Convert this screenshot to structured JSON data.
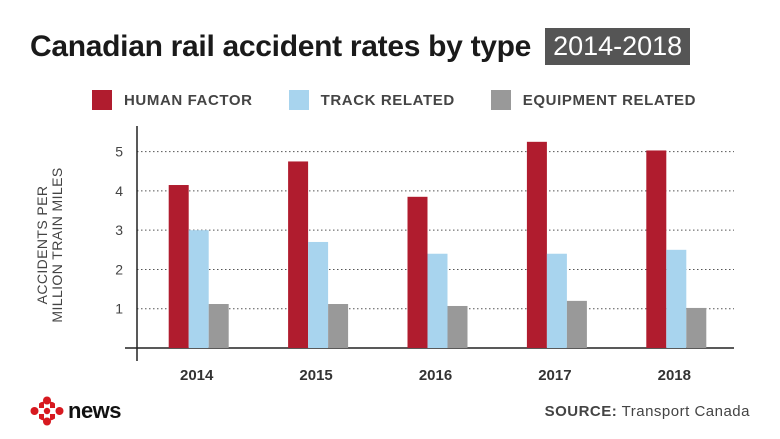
{
  "header": {
    "title": "Canadian rail accident rates by type",
    "badge": "2014-2018"
  },
  "colors": {
    "human_factor": "#b01c2e",
    "track_related": "#a8d4ee",
    "equipment_related": "#999999"
  },
  "chart_data": {
    "type": "bar",
    "categories": [
      "2014",
      "2015",
      "2016",
      "2017",
      "2018"
    ],
    "series": [
      {
        "name": "HUMAN FACTOR",
        "values": [
          4.15,
          4.75,
          3.85,
          5.25,
          5.03
        ]
      },
      {
        "name": "TRACK RELATED",
        "values": [
          3.0,
          2.7,
          2.4,
          2.4,
          2.5
        ]
      },
      {
        "name": "EQUIPMENT RELATED",
        "values": [
          1.12,
          1.12,
          1.07,
          1.2,
          1.02
        ]
      }
    ],
    "ylabel_line1": "ACCIDENTS PER",
    "ylabel_line2": "MILLION TRAIN MILES",
    "yticks": [
      "1",
      "2",
      "3",
      "4",
      "5"
    ],
    "ylim": [
      0,
      5.5
    ],
    "grid": "dotted horizontal",
    "legend_position": "top"
  },
  "footer": {
    "logo_text": "news",
    "logo_icon": "cbc-gem-icon",
    "source_label": "SOURCE:",
    "source_text": "Transport Canada"
  }
}
